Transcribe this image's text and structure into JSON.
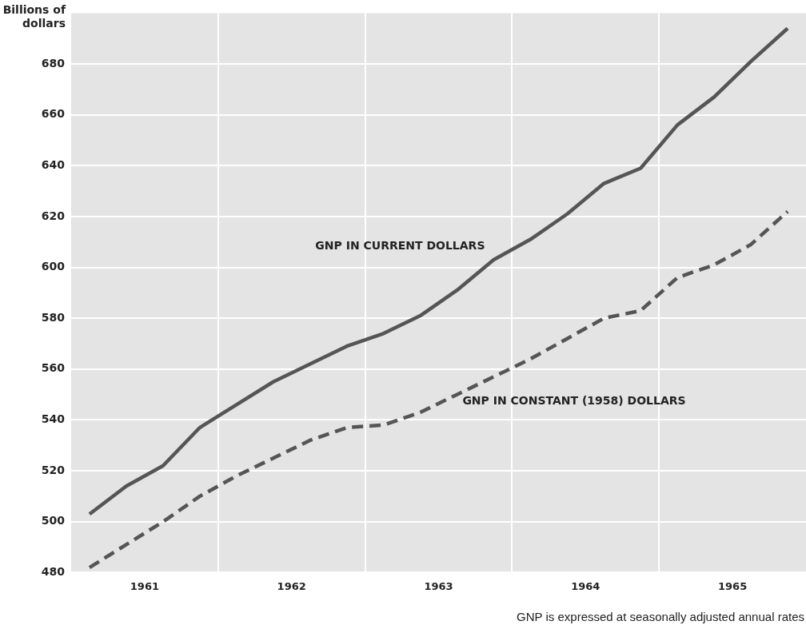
{
  "chart_data": {
    "type": "line",
    "ylabel": "Billions of dollars",
    "x": [
      1961.125,
      1961.375,
      1961.625,
      1961.875,
      1962.125,
      1962.375,
      1962.625,
      1962.875,
      1963.125,
      1963.375,
      1963.625,
      1963.875,
      1964.125,
      1964.375,
      1964.625,
      1964.875,
      1965.125,
      1965.375,
      1965.625,
      1965.875
    ],
    "series": [
      {
        "name": "GNP IN CURRENT DOLLARS",
        "color": "#555555",
        "line_style": "solid",
        "values": [
          503,
          514,
          522,
          537,
          546,
          555,
          562,
          569,
          574,
          581,
          591,
          603,
          611,
          621,
          633,
          639,
          656,
          667,
          681,
          694
        ]
      },
      {
        "name": "GNP IN CONSTANT (1958) DOLLARS",
        "color": "#555555",
        "line_style": "dashed",
        "values": [
          482,
          491,
          500,
          510,
          518,
          525,
          532,
          537,
          538,
          543,
          550,
          557,
          564,
          572,
          580,
          583,
          596,
          601,
          609,
          622
        ]
      }
    ],
    "xlim": [
      1961,
      1966
    ],
    "xticks": [
      {
        "value": 1961.5,
        "label": "1961"
      },
      {
        "value": 1962,
        "label": null
      },
      {
        "value": 1962.5,
        "label": "1962"
      },
      {
        "value": 1963,
        "label": null
      },
      {
        "value": 1963.5,
        "label": "1963"
      },
      {
        "value": 1964,
        "label": null
      },
      {
        "value": 1964.5,
        "label": "1964"
      },
      {
        "value": 1965,
        "label": null
      },
      {
        "value": 1965.5,
        "label": "1965"
      }
    ],
    "ylim": [
      480,
      700
    ],
    "yticks": [
      480,
      500,
      520,
      540,
      560,
      580,
      600,
      620,
      640,
      660,
      680
    ],
    "grid": true,
    "legend": false,
    "marker": "none",
    "annotations": [
      "GNP is expressed at seasonally adjusted annual rates"
    ]
  }
}
